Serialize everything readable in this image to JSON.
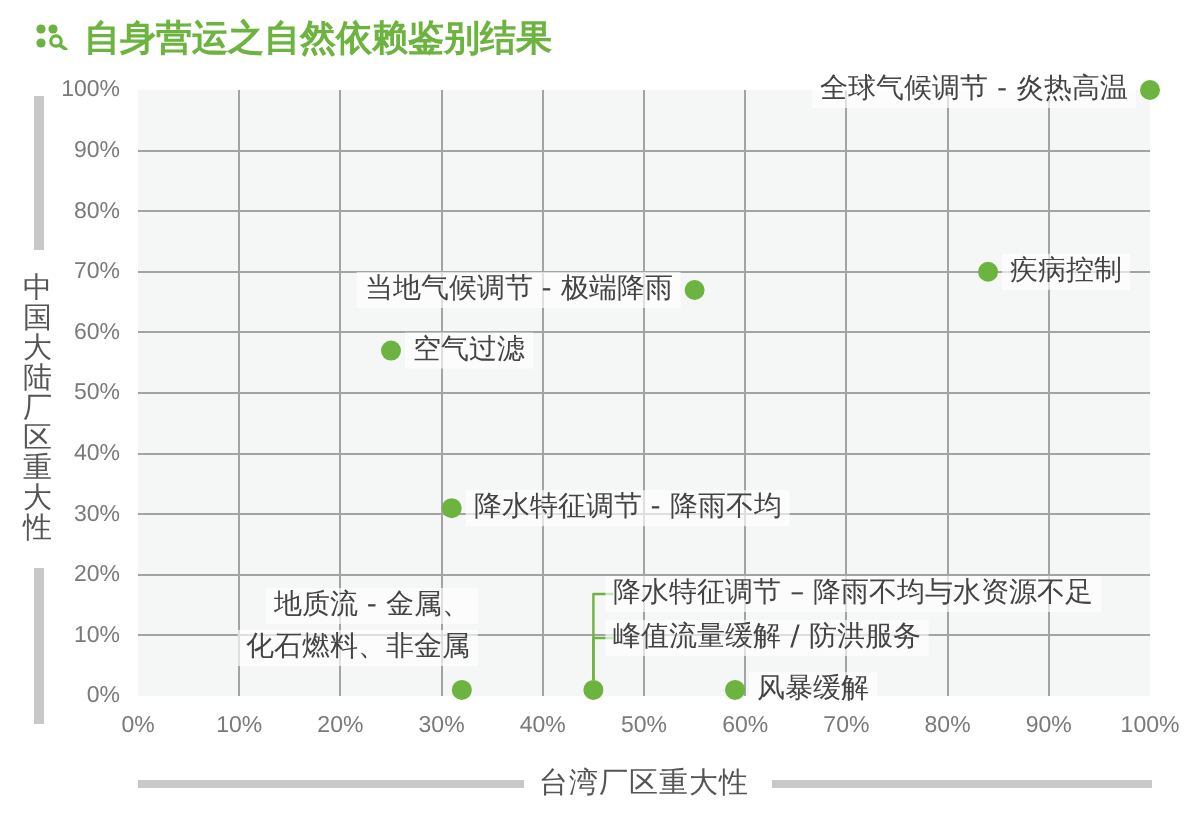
{
  "chart_data": {
    "type": "scatter",
    "title": "自身营运之自然依赖鉴别结果",
    "xlabel": "台湾厂区重大性",
    "ylabel": "中国大陆厂区重大性",
    "x": [
      100,
      84,
      55,
      25,
      31,
      32,
      45,
      59
    ],
    "values": [
      100,
      70,
      67,
      57,
      31,
      1,
      1,
      1
    ],
    "color": "#6db33f",
    "annotations": [
      {
        "text": "全球气候调节 - 炎热高温",
        "x": 100,
        "y": 100
      },
      {
        "text": "疾病控制",
        "x": 84,
        "y": 70
      },
      {
        "text": "当地气候调节 - 极端降雨",
        "x": 55,
        "y": 67
      },
      {
        "text": "空气过滤",
        "x": 25,
        "y": 57
      },
      {
        "text": "降水特征调节 - 降雨不均",
        "x": 31,
        "y": 31
      },
      {
        "text": "地质流 - 金属、化石燃料、非金属",
        "x": 32,
        "y": 1
      },
      {
        "text": "降水特征调节 – 降雨不均与水资源不足",
        "x": 45,
        "y": 1
      },
      {
        "text": "峰值流量缓解 / 防洪服务",
        "x": 45,
        "y": 1
      },
      {
        "text": "风暴缓解",
        "x": 59,
        "y": 1
      }
    ],
    "xlim": [
      0,
      100
    ],
    "ylim": [
      0,
      100
    ],
    "xticks": [
      {
        "value": 0,
        "label": "0%"
      },
      {
        "value": 10,
        "label": "10%"
      },
      {
        "value": 20,
        "label": "20%"
      },
      {
        "value": 30,
        "label": "30%"
      },
      {
        "value": 40,
        "label": "40%"
      },
      {
        "value": 50,
        "label": "50%"
      },
      {
        "value": 60,
        "label": "60%"
      },
      {
        "value": 70,
        "label": "70%"
      },
      {
        "value": 80,
        "label": "80%"
      },
      {
        "value": 90,
        "label": "90%"
      },
      {
        "value": 100,
        "label": "100%"
      }
    ],
    "yticks": [
      {
        "value": 0,
        "label": "0%"
      },
      {
        "value": 10,
        "label": "10%"
      },
      {
        "value": 20,
        "label": "20%"
      },
      {
        "value": 30,
        "label": "30%"
      },
      {
        "value": 40,
        "label": "40%"
      },
      {
        "value": 50,
        "label": "50%"
      },
      {
        "value": 60,
        "label": "60%"
      },
      {
        "value": 70,
        "label": "70%"
      },
      {
        "value": 80,
        "label": "80%"
      },
      {
        "value": 90,
        "label": "90%"
      },
      {
        "value": 100,
        "label": "100%"
      }
    ],
    "grid": true,
    "marker": "circle"
  }
}
